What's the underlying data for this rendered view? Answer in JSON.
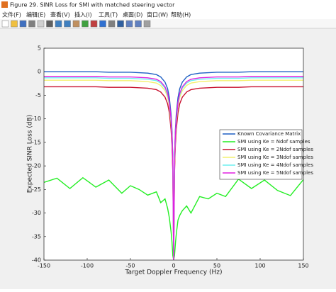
{
  "window": {
    "title": "Figure 29. SINR Loss for SMI with matched steering vector",
    "menu": [
      "文件(F)",
      "编辑(E)",
      "查看(V)",
      "插入(I)",
      "工具(T)",
      "桌面(D)",
      "窗口(W)",
      "帮助(H)"
    ]
  },
  "chart_data": {
    "type": "line",
    "xlabel": "Target Doppler Frequency (Hz)",
    "ylabel": "Expected SINR Loss (dB)",
    "x": [
      -150,
      -135,
      -120,
      -105,
      -90,
      -75,
      -60,
      -50,
      -40,
      -30,
      -20,
      -15,
      -10,
      -7,
      -5,
      -3,
      -2,
      -1,
      0,
      1,
      2,
      3,
      5,
      7,
      10,
      15,
      20,
      30,
      40,
      50,
      60,
      75,
      90,
      105,
      120,
      135,
      150
    ],
    "series": [
      {
        "name": "Known Covariance Matrix",
        "color": "#1f5fc4",
        "values": [
          0,
          0,
          0,
          0,
          0,
          -0.1,
          -0.1,
          -0.1,
          -0.2,
          -0.3,
          -0.6,
          -1.1,
          -2.2,
          -3.6,
          -5.5,
          -9.1,
          -12.3,
          -18.1,
          -40,
          -18.1,
          -12.3,
          -9.1,
          -5.5,
          -3.6,
          -2.2,
          -1.1,
          -0.6,
          -0.3,
          -0.2,
          -0.1,
          -0.1,
          -0.1,
          0,
          0,
          0,
          0,
          0
        ]
      },
      {
        "name": "SMI using Ke = Ndof samples",
        "color": "#22ee22",
        "values": [
          -23.5,
          -22.6,
          -24.8,
          -22.5,
          -24.5,
          -23,
          -25.8,
          -24.2,
          -25,
          -26.2,
          -25.5,
          -27.8,
          -27,
          -29,
          -31,
          -34,
          -36,
          -39,
          -40,
          -39,
          -36.5,
          -34.5,
          -31.5,
          -30.5,
          -29.5,
          -28.5,
          -30,
          -26.5,
          -27,
          -25.8,
          -26.5,
          -22.8,
          -24.8,
          -23,
          -25.2,
          -26.3,
          -22.9
        ]
      },
      {
        "name": "SMI using Ke = 2Ndof samples",
        "color": "#c8102e",
        "values": [
          -3.2,
          -3.2,
          -3.2,
          -3.2,
          -3.2,
          -3.3,
          -3.3,
          -3.3,
          -3.4,
          -3.5,
          -3.8,
          -4.3,
          -5.4,
          -6.8,
          -8.7,
          -12.3,
          -15.5,
          -21.3,
          -40,
          -21.3,
          -15.5,
          -12.3,
          -8.7,
          -6.8,
          -5.4,
          -4.3,
          -3.8,
          -3.5,
          -3.4,
          -3.3,
          -3.3,
          -3.3,
          -3.2,
          -3.2,
          -3.2,
          -3.2,
          -3.2
        ]
      },
      {
        "name": "SMI using Ke = 3Ndof samples",
        "color": "#f4f070",
        "values": [
          -1.8,
          -1.8,
          -1.8,
          -1.8,
          -1.8,
          -1.9,
          -1.9,
          -1.9,
          -2,
          -2.1,
          -2.4,
          -2.9,
          -4,
          -5.4,
          -7.3,
          -10.9,
          -14.1,
          -19.9,
          -40,
          -19.9,
          -14.1,
          -10.9,
          -7.3,
          -5.4,
          -4,
          -2.9,
          -2.4,
          -2.1,
          -2,
          -1.9,
          -1.9,
          -1.9,
          -1.8,
          -1.8,
          -1.8,
          -1.8,
          -1.8
        ]
      },
      {
        "name": "SMI using Ke = 4Ndof samples",
        "color": "#6ef0f0",
        "values": [
          -1.3,
          -1.3,
          -1.3,
          -1.3,
          -1.3,
          -1.4,
          -1.4,
          -1.4,
          -1.5,
          -1.6,
          -1.9,
          -2.4,
          -3.5,
          -4.9,
          -6.8,
          -10.4,
          -13.6,
          -19.4,
          -40,
          -19.4,
          -13.6,
          -10.4,
          -6.8,
          -4.9,
          -3.5,
          -2.4,
          -1.9,
          -1.6,
          -1.5,
          -1.4,
          -1.4,
          -1.4,
          -1.3,
          -1.3,
          -1.3,
          -1.3,
          -1.3
        ]
      },
      {
        "name": "SMI using Ke = 5Ndof samples",
        "color": "#e020e0",
        "values": [
          -1,
          -1,
          -1,
          -1,
          -1,
          -1.1,
          -1.1,
          -1.1,
          -1.2,
          -1.3,
          -1.6,
          -2.1,
          -3.2,
          -4.6,
          -6.5,
          -10.1,
          -13.3,
          -19.1,
          -40,
          -19.1,
          -13.3,
          -10.1,
          -6.5,
          -4.6,
          -3.2,
          -2.1,
          -1.6,
          -1.3,
          -1.2,
          -1.1,
          -1.1,
          -1.1,
          -1,
          -1,
          -1,
          -1,
          -1
        ]
      }
    ],
    "xlim": [
      -150,
      150
    ],
    "xticks": [
      -150,
      -100,
      -50,
      0,
      50,
      100,
      150
    ],
    "ylim": [
      -40,
      5
    ],
    "yticks": [
      5,
      0,
      -5,
      -10,
      -15,
      -20,
      -25,
      -30,
      -35,
      -40
    ],
    "legend": "inside-right"
  }
}
